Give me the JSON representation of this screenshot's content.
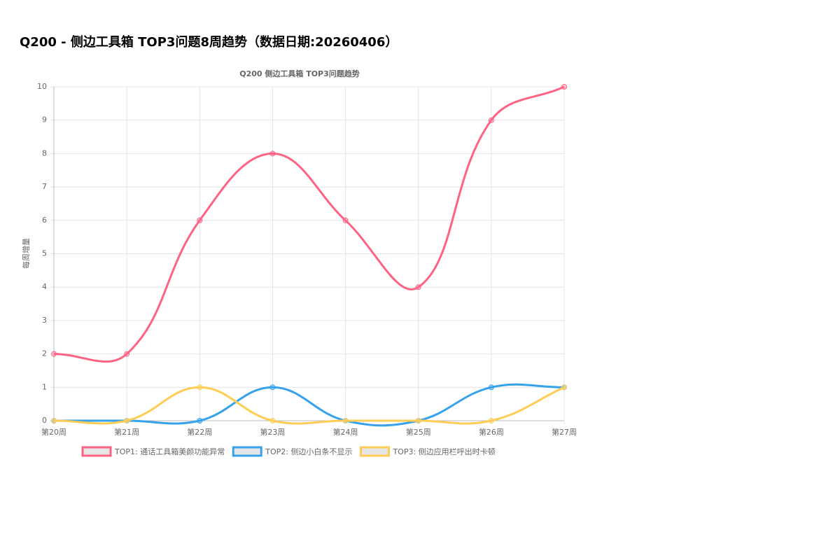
{
  "page_title": "Q200 - 侧边工具箱 TOP3问题8周趋势（数据日期:20260406）",
  "chart_data": {
    "type": "line",
    "title": "Q200 侧边工具箱 TOP3问题趋势",
    "y_label": "每周增量",
    "categories": [
      "第20周",
      "第21周",
      "第22周",
      "第23周",
      "第24周",
      "第25周",
      "第26周",
      "第27周"
    ],
    "series": [
      {
        "name": "TOP1: 通话工具箱美颜功能异常",
        "color": "#ff6384",
        "values": [
          2,
          2,
          6,
          8,
          6,
          4,
          9,
          10
        ]
      },
      {
        "name": "TOP2: 侧边小白条不显示",
        "color": "#36a2eb",
        "values": [
          0,
          0,
          0,
          1,
          0,
          0,
          1,
          1
        ]
      },
      {
        "name": "TOP3: 侧边应用栏呼出时卡顿",
        "color": "#ffcd56",
        "values": [
          0,
          0,
          1,
          0,
          0,
          0,
          0,
          1
        ]
      }
    ],
    "ylim": [
      0,
      10
    ],
    "yticks": [
      0,
      1,
      2,
      3,
      4,
      5,
      6,
      7,
      8,
      9,
      10
    ],
    "grid": true,
    "legend": "bottom"
  }
}
